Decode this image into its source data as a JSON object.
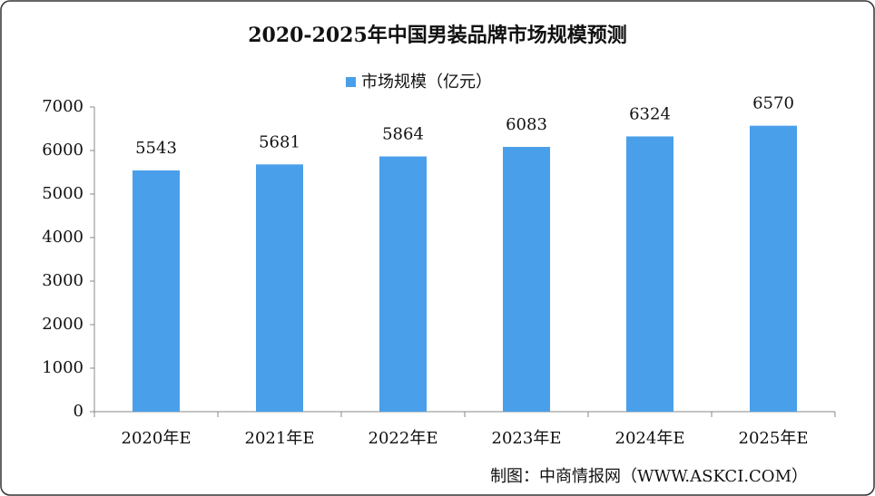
{
  "chart_data": {
    "type": "bar",
    "title": "2020-2025年中国男装品牌市场规模预测",
    "categories": [
      "2020年E",
      "2021年E",
      "2022年E",
      "2023年E",
      "2024年E",
      "2025年E"
    ],
    "series": [
      {
        "name": "市场规模（亿元）",
        "color": "#4a9fea",
        "values": [
          5543,
          5681,
          5864,
          6083,
          6324,
          6570
        ]
      }
    ],
    "ylim": [
      0,
      7000
    ],
    "yticks": [
      0,
      1000,
      2000,
      3000,
      4000,
      5000,
      6000,
      7000
    ],
    "grid": false,
    "legend": "top",
    "source": "制图：中商情报网（WWW.ASKCI.COM）"
  }
}
